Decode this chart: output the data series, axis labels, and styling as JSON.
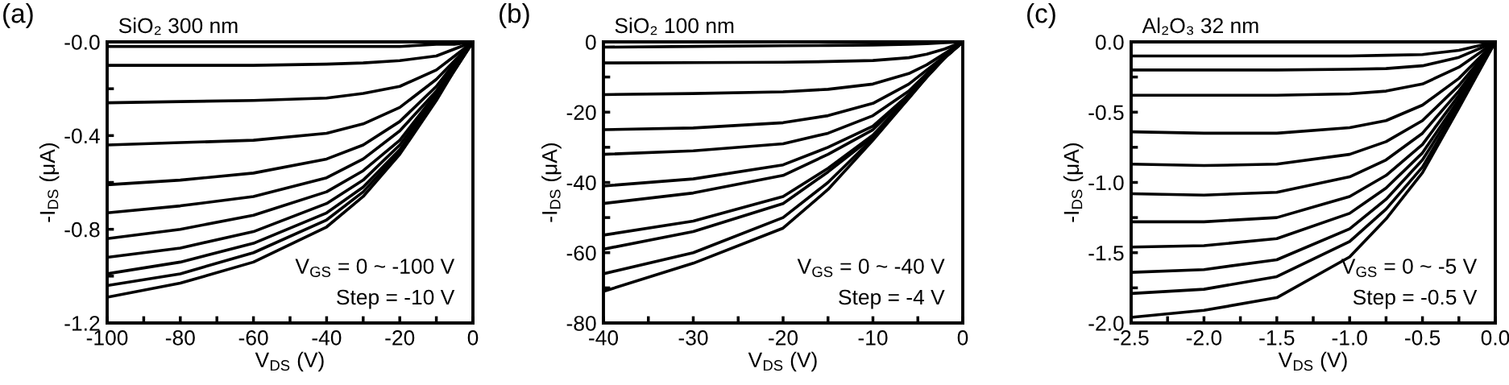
{
  "chart_data": [
    {
      "type": "line",
      "title": "SiO₂ 300 nm",
      "xlabel": "V$_{DS}$ (V)",
      "ylabel": "-I$_{DS}$ (μA)",
      "annotations": [
        "(a)",
        "V$_{GS}$ = 0 ~ -100 V",
        "Step = -10 V"
      ],
      "x": [
        -100,
        -80,
        -60,
        -40,
        -30,
        -20,
        -10,
        -5,
        0
      ],
      "xlim": [
        -100,
        0
      ],
      "xticks": [
        -100,
        {
          "value": -90,
          "label": null
        },
        -80,
        {
          "value": -70,
          "label": null
        },
        -60,
        {
          "value": -50,
          "label": null
        },
        -40,
        {
          "value": -30,
          "label": null
        },
        -20,
        {
          "value": -10,
          "label": null
        },
        0
      ],
      "ylim": [
        -1.2,
        0
      ],
      "yticks": [
        {
          "value": -1.2,
          "label": "-1.2"
        },
        {
          "value": -1.0,
          "label": null
        },
        {
          "value": -0.8,
          "label": "-0.8"
        },
        {
          "value": -0.6,
          "label": null
        },
        {
          "value": -0.4,
          "label": "-0.4"
        },
        {
          "value": -0.2,
          "label": null
        },
        {
          "value": 0,
          "label": "-0.0"
        }
      ],
      "series": [
        {
          "color": "#000000",
          "values": [
            -0.02,
            -0.02,
            -0.02,
            -0.02,
            -0.02,
            -0.02,
            -0.01,
            -0.01,
            0
          ]
        },
        {
          "color": "#000000",
          "values": [
            -0.1,
            -0.1,
            -0.1,
            -0.095,
            -0.09,
            -0.08,
            -0.06,
            -0.03,
            0
          ]
        },
        {
          "color": "#000000",
          "values": [
            -0.26,
            -0.255,
            -0.25,
            -0.24,
            -0.22,
            -0.19,
            -0.12,
            -0.06,
            0
          ]
        },
        {
          "color": "#000000",
          "values": [
            -0.44,
            -0.43,
            -0.42,
            -0.39,
            -0.35,
            -0.28,
            -0.16,
            -0.08,
            0
          ]
        },
        {
          "color": "#000000",
          "values": [
            -0.61,
            -0.59,
            -0.56,
            -0.5,
            -0.44,
            -0.34,
            -0.19,
            -0.09,
            0
          ]
        },
        {
          "color": "#000000",
          "values": [
            -0.73,
            -0.7,
            -0.66,
            -0.58,
            -0.5,
            -0.38,
            -0.21,
            -0.1,
            0
          ]
        },
        {
          "color": "#000000",
          "values": [
            -0.84,
            -0.8,
            -0.74,
            -0.64,
            -0.55,
            -0.42,
            -0.22,
            -0.11,
            0
          ]
        },
        {
          "color": "#000000",
          "values": [
            -0.92,
            -0.88,
            -0.81,
            -0.69,
            -0.59,
            -0.44,
            -0.23,
            -0.11,
            0
          ]
        },
        {
          "color": "#000000",
          "values": [
            -0.99,
            -0.94,
            -0.86,
            -0.73,
            -0.62,
            -0.46,
            -0.24,
            -0.12,
            0
          ]
        },
        {
          "color": "#000000",
          "values": [
            -1.04,
            -0.99,
            -0.9,
            -0.76,
            -0.64,
            -0.47,
            -0.24,
            -0.12,
            0
          ]
        },
        {
          "color": "#000000",
          "values": [
            -1.09,
            -1.03,
            -0.94,
            -0.79,
            -0.66,
            -0.48,
            -0.25,
            -0.12,
            0
          ]
        }
      ]
    },
    {
      "type": "line",
      "title": "SiO₂ 100 nm",
      "xlabel": "V$_{DS}$ (V)",
      "ylabel": "-I$_{DS}$ (μA)",
      "annotations": [
        "(b)",
        "V$_{GS}$ = 0 ~ -40 V",
        "Step = -4 V"
      ],
      "x": [
        -40,
        -30,
        -20,
        -15,
        -10,
        -6,
        -4,
        -2,
        0
      ],
      "xlim": [
        -40,
        0
      ],
      "xticks": [
        -40,
        {
          "value": -35,
          "label": null
        },
        -30,
        {
          "value": -25,
          "label": null
        },
        -20,
        {
          "value": -15,
          "label": null
        },
        -10,
        {
          "value": -5,
          "label": null
        },
        0
      ],
      "ylim": [
        -80,
        0
      ],
      "yticks": [
        -80,
        {
          "value": -70,
          "label": null
        },
        -60,
        {
          "value": -50,
          "label": null
        },
        -40,
        {
          "value": -30,
          "label": null
        },
        -20,
        {
          "value": -10,
          "label": null
        },
        0
      ],
      "series": [
        {
          "color": "#000000",
          "values": [
            -1.5,
            -1.3,
            -1.1,
            -1.0,
            -0.9,
            -0.7,
            -0.5,
            -0.2,
            0
          ]
        },
        {
          "color": "#000000",
          "values": [
            -6,
            -5.9,
            -5.8,
            -5.6,
            -5.3,
            -4.5,
            -3.5,
            -2,
            0
          ]
        },
        {
          "color": "#000000",
          "values": [
            -15,
            -14.7,
            -14.2,
            -13.5,
            -12,
            -9,
            -6.5,
            -3.3,
            0
          ]
        },
        {
          "color": "#000000",
          "values": [
            -25,
            -24.5,
            -23,
            -21,
            -17.5,
            -12,
            -8,
            -4,
            0
          ]
        },
        {
          "color": "#000000",
          "values": [
            -32,
            -31,
            -29,
            -26,
            -21,
            -14,
            -9,
            -4.2,
            0
          ]
        },
        {
          "color": "#000000",
          "values": [
            -41,
            -39,
            -35,
            -30,
            -24,
            -15,
            -9.5,
            -4.4,
            0
          ]
        },
        {
          "color": "#000000",
          "values": [
            -46,
            -43,
            -38,
            -32,
            -25,
            -15,
            -9.8,
            -4.5,
            0
          ]
        },
        {
          "color": "#000000",
          "values": [
            -55,
            -51,
            -44,
            -36,
            -26.5,
            -15.5,
            -10,
            -4.5,
            0
          ]
        },
        {
          "color": "#000000",
          "values": [
            -59,
            -54,
            -46,
            -37,
            -27,
            -15.5,
            -10,
            -4.5,
            0
          ]
        },
        {
          "color": "#000000",
          "values": [
            -66,
            -60,
            -50,
            -40,
            -27.5,
            -16,
            -10,
            -4.5,
            0
          ]
        },
        {
          "color": "#000000",
          "values": [
            -71,
            -63,
            -53,
            -42,
            -28,
            -16,
            -10,
            -4.5,
            0
          ]
        }
      ]
    },
    {
      "type": "line",
      "title": "Al₂O₃ 32 nm",
      "xlabel": "V$_{DS}$ (V)",
      "ylabel": "-I$_{DS}$ (μA)",
      "annotations": [
        "(c)",
        "V$_{GS}$ = 0 ~ -5 V",
        "Step = -0.5 V"
      ],
      "x": [
        -2.5,
        -2.0,
        -1.5,
        -1.0,
        -0.75,
        -0.5,
        -0.25,
        0
      ],
      "xlim": [
        -2.5,
        0
      ],
      "xticks": [
        {
          "value": -2.5,
          "label": "-2.5"
        },
        {
          "value": -2.25,
          "label": null
        },
        {
          "value": -2.0,
          "label": "-2.0"
        },
        {
          "value": -1.75,
          "label": null
        },
        {
          "value": -1.5,
          "label": "-1.5"
        },
        {
          "value": -1.25,
          "label": null
        },
        {
          "value": -1.0,
          "label": "-1.0"
        },
        {
          "value": -0.75,
          "label": null
        },
        {
          "value": -0.5,
          "label": "-0.5"
        },
        {
          "value": -0.25,
          "label": null
        },
        {
          "value": 0,
          "label": "0.0"
        }
      ],
      "ylim": [
        -2.0,
        0
      ],
      "yticks": [
        {
          "value": -2.0,
          "label": "-2.0"
        },
        {
          "value": -1.75,
          "label": null
        },
        {
          "value": -1.5,
          "label": "-1.5"
        },
        {
          "value": -1.25,
          "label": null
        },
        {
          "value": -1.0,
          "label": "-1.0"
        },
        {
          "value": -0.75,
          "label": null
        },
        {
          "value": -0.5,
          "label": "-0.5"
        },
        {
          "value": -0.25,
          "label": null
        },
        {
          "value": 0,
          "label": "0.0"
        }
      ],
      "series": [
        {
          "color": "#000000",
          "values": [
            -0.1,
            -0.1,
            -0.1,
            -0.1,
            -0.095,
            -0.09,
            -0.06,
            0
          ]
        },
        {
          "color": "#000000",
          "values": [
            -0.2,
            -0.2,
            -0.2,
            -0.195,
            -0.19,
            -0.17,
            -0.11,
            0
          ]
        },
        {
          "color": "#000000",
          "values": [
            -0.38,
            -0.38,
            -0.38,
            -0.37,
            -0.35,
            -0.3,
            -0.18,
            0
          ]
        },
        {
          "color": "#000000",
          "values": [
            -0.64,
            -0.65,
            -0.65,
            -0.61,
            -0.56,
            -0.45,
            -0.26,
            0
          ]
        },
        {
          "color": "#000000",
          "values": [
            -0.87,
            -0.88,
            -0.87,
            -0.8,
            -0.71,
            -0.56,
            -0.31,
            0
          ]
        },
        {
          "color": "#000000",
          "values": [
            -1.08,
            -1.09,
            -1.07,
            -0.96,
            -0.84,
            -0.65,
            -0.35,
            0
          ]
        },
        {
          "color": "#000000",
          "values": [
            -1.28,
            -1.28,
            -1.25,
            -1.1,
            -0.95,
            -0.73,
            -0.38,
            0
          ]
        },
        {
          "color": "#000000",
          "values": [
            -1.46,
            -1.45,
            -1.4,
            -1.22,
            -1.04,
            -0.79,
            -0.41,
            0
          ]
        },
        {
          "color": "#000000",
          "values": [
            -1.64,
            -1.62,
            -1.55,
            -1.33,
            -1.12,
            -0.84,
            -0.43,
            0
          ]
        },
        {
          "color": "#000000",
          "values": [
            -1.79,
            -1.76,
            -1.67,
            -1.42,
            -1.19,
            -0.89,
            -0.45,
            0
          ]
        },
        {
          "color": "#000000",
          "values": [
            -1.96,
            -1.91,
            -1.82,
            -1.53,
            -1.26,
            -0.93,
            -0.47,
            0
          ]
        }
      ]
    }
  ]
}
